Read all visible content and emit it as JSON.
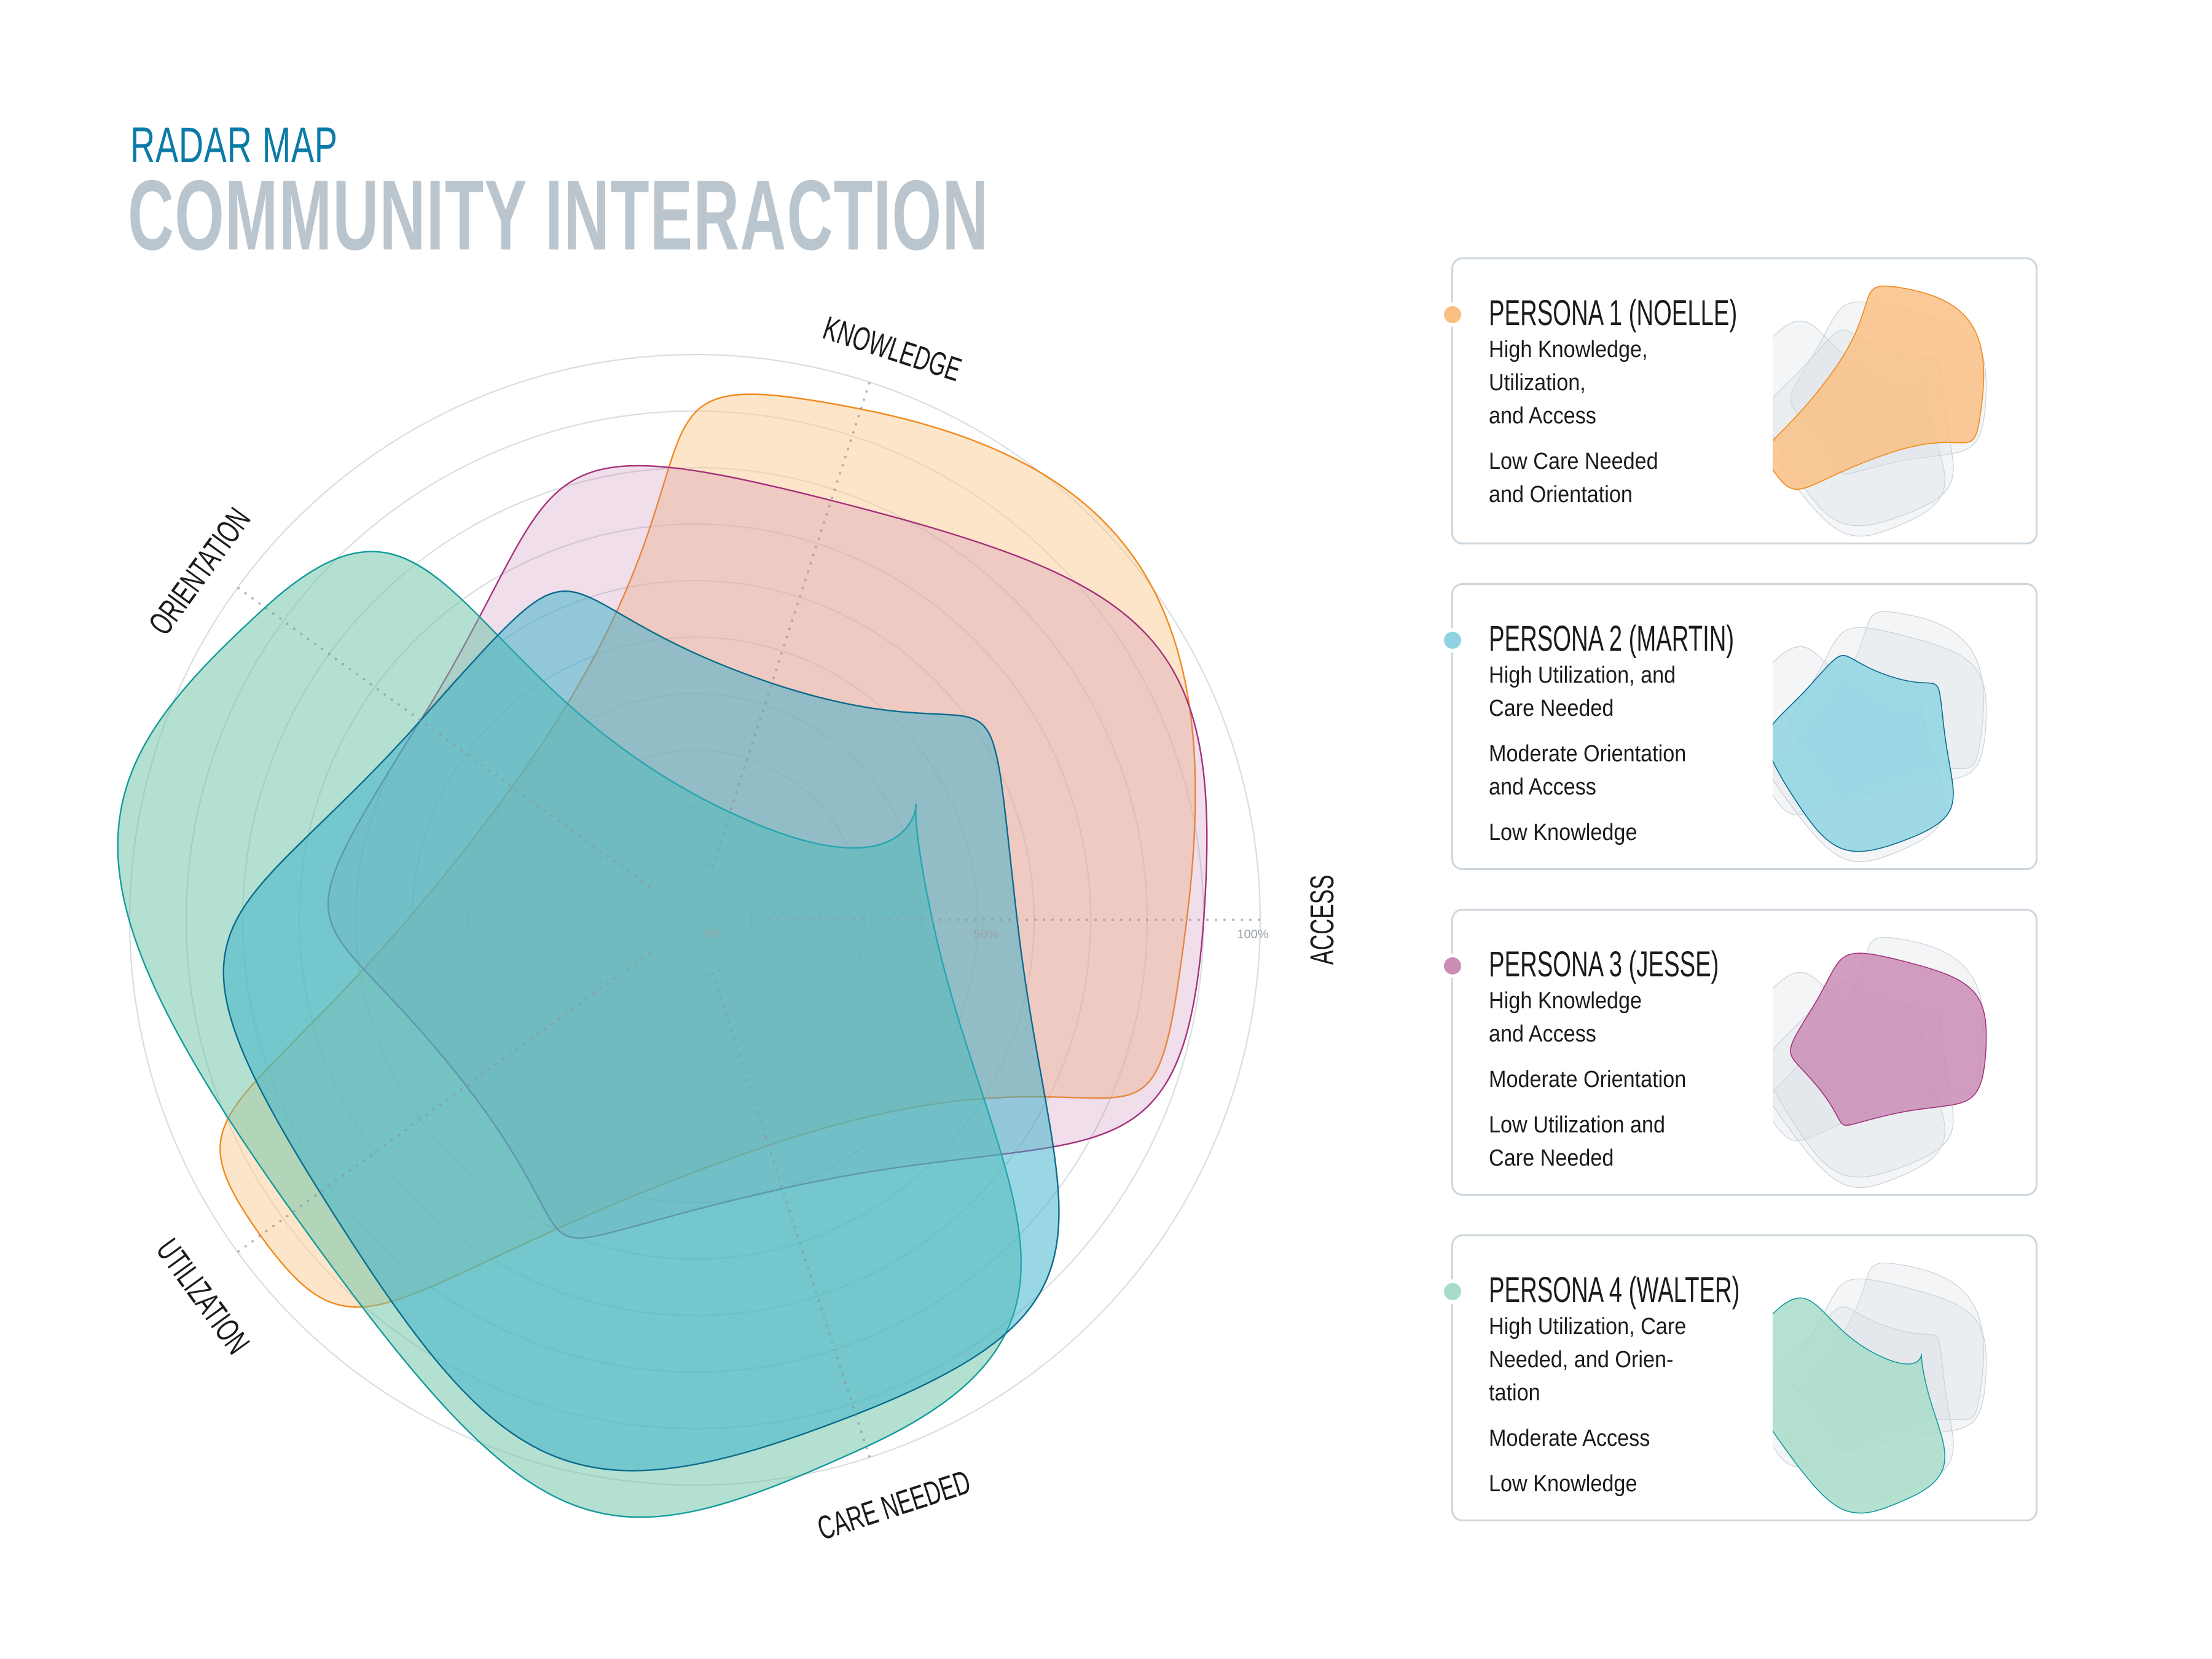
{
  "header": {
    "subtitle": "RADAR MAP",
    "title": "COMMUNITY INTERACTION"
  },
  "colors": {
    "subtitle": "#0A7BA8",
    "title": "#BAC5CE",
    "card_border": "#CDD5DC",
    "grid": "#D9DDE1"
  },
  "chart_data": {
    "type": "radar",
    "title": "COMMUNITY INTERACTION",
    "subtitle": "RADAR MAP",
    "axes": [
      "ACCESS",
      "CARE NEEDED",
      "UTILIZATION",
      "ORIENTATION",
      "KNOWLEDGE"
    ],
    "axis_angles_deg": [
      0,
      72,
      144,
      216,
      288
    ],
    "tick_labels": [
      "0%",
      "50%",
      "100%"
    ],
    "range": [
      0,
      100
    ],
    "rings": 10,
    "grid": true,
    "legend_position": "right",
    "series": [
      {
        "name": "PERSONA 1 (NOELLE)",
        "values": [
          87,
          42,
          95,
          40,
          95
        ],
        "fill": "#FCCB96",
        "stroke": "#F08A1C",
        "opacity": 0.5
      },
      {
        "name": "PERSONA 3 (JESSE)",
        "values": [
          90,
          50,
          50,
          60,
          78
        ],
        "fill": "#C27AAA",
        "stroke": "#A5317C",
        "opacity": 0.25
      },
      {
        "name": "PERSONA 4 (WALTER)",
        "values": [
          42,
          98,
          88,
          94,
          20
        ],
        "fill": "#6DC4A6",
        "stroke": "#149B9B",
        "opacity": 0.52
      },
      {
        "name": "PERSONA 2 (MARTIN)",
        "values": [
          57,
          92,
          82,
          60,
          44
        ],
        "fill": "#35AFC9",
        "stroke": "#0A6C8E",
        "opacity": 0.5
      }
    ]
  },
  "legend": [
    {
      "title": "PERSONA 1 (NOELLE)",
      "color": "#F9BF85",
      "series_index": 0,
      "groups": [
        [
          "High Knowledge,",
          "Utilization,",
          "and Access"
        ],
        [
          "Low Care Needed",
          "and Orientation"
        ]
      ]
    },
    {
      "title": "PERSONA 2 (MARTIN)",
      "color": "#8FD3E3",
      "series_index": 3,
      "groups": [
        [
          "High Utilization, and",
          "Care Needed"
        ],
        [
          "Moderate Orientation",
          "and Access"
        ],
        [
          "Low Knowledge"
        ]
      ]
    },
    {
      "title": "PERSONA 3 (JESSE)",
      "color": "#C98DB6",
      "series_index": 1,
      "groups": [
        [
          "High Knowledge",
          "and Access"
        ],
        [
          "Moderate Orientation"
        ],
        [
          "Low Utilization and",
          "Care Needed"
        ]
      ]
    },
    {
      "title": "PERSONA 4 (WALTER)",
      "color": "#A8DCC8",
      "series_index": 2,
      "groups": [
        [
          "High Utilization, Care",
          "Needed, and Orien-",
          "tation"
        ],
        [
          "Moderate Access"
        ],
        [
          "Low Knowledge"
        ]
      ]
    }
  ]
}
